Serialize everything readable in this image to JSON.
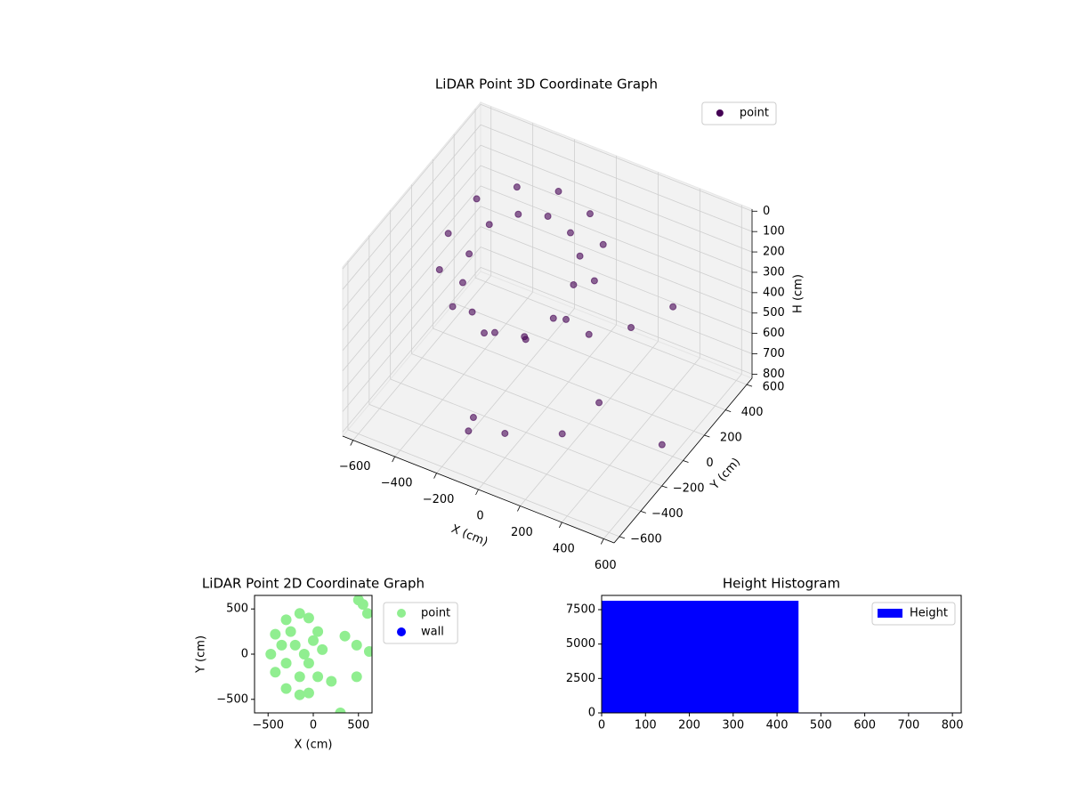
{
  "chart_data": [
    {
      "type": "scatter3d",
      "title": "LiDAR Point 3D Coordinate Graph",
      "xlabel": "X (cm)",
      "ylabel": "Y (cm)",
      "zlabel": "H (cm)",
      "xlim": [
        -650,
        650
      ],
      "ylim": [
        -650,
        650
      ],
      "zlim": [
        820,
        -10
      ],
      "xticks": [
        {
          "value": -600,
          "label": "−600"
        },
        {
          "value": -400,
          "label": "−400"
        },
        {
          "value": -200,
          "label": "−200"
        },
        0,
        200,
        400,
        600
      ],
      "yticks": [
        {
          "value": -600,
          "label": "−600"
        },
        {
          "value": -400,
          "label": "−400"
        },
        {
          "value": -200,
          "label": "−200"
        },
        0,
        200,
        400,
        600
      ],
      "zticks": [
        0,
        100,
        200,
        300,
        400,
        500,
        600,
        700,
        800
      ],
      "legend": "upper right",
      "alpha": 0.6,
      "series": [
        {
          "name": "point",
          "color": "#440154",
          "x": [
            200,
            153,
            25,
            -150,
            -325,
            -453,
            -500,
            -453,
            -325,
            -150,
            25,
            153,
            100,
            67,
            -25,
            -150,
            -275,
            -367,
            -400,
            -367,
            -275,
            -150,
            -25,
            67,
            250,
            350,
            400,
            500,
            600,
            300,
            -100,
            0,
            -200
          ],
          "y": [
            50,
            225,
            353,
            400,
            353,
            225,
            50,
            -125,
            -253,
            -300,
            -253,
            -125,
            50,
            175,
            267,
            300,
            267,
            175,
            50,
            -75,
            -167,
            -200,
            -167,
            -75,
            -100,
            100,
            -300,
            200,
            -100,
            -450,
            -500,
            -400,
            -350
          ],
          "z": [
            150,
            100,
            80,
            70,
            90,
            120,
            200,
            250,
            300,
            330,
            320,
            250,
            210,
            160,
            140,
            130,
            150,
            180,
            260,
            310,
            360,
            390,
            380,
            310,
            300,
            350,
            450,
            250,
            700,
            550,
            600,
            700,
            800
          ]
        }
      ]
    },
    {
      "type": "scatter",
      "title": "LiDAR Point 2D Coordinate Graph",
      "xlabel": "X (cm)",
      "ylabel": "Y (cm)",
      "xlim": [
        -650,
        650
      ],
      "ylim": [
        -650,
        650
      ],
      "xticks": [
        {
          "value": -500,
          "label": "−500"
        },
        0,
        500
      ],
      "yticks": [
        {
          "value": -500,
          "label": "−500"
        },
        0,
        500
      ],
      "legend": "outside upper right",
      "series": [
        {
          "name": "point",
          "color": "#90ee90",
          "x": [
            100,
            50,
            -50,
            -150,
            -300,
            -420,
            -470,
            -420,
            -300,
            -150,
            -50,
            50,
            -100,
            -200,
            -300,
            -250,
            -150,
            -50,
            0,
            -350,
            550,
            600,
            500,
            620,
            300,
            480,
            480,
            350,
            200
          ],
          "y": [
            50,
            250,
            400,
            450,
            380,
            220,
            0,
            -200,
            -380,
            -450,
            -430,
            -250,
            0,
            100,
            -100,
            250,
            -250,
            -100,
            150,
            100,
            550,
            450,
            600,
            30,
            -650,
            -250,
            100,
            200,
            -300
          ]
        },
        {
          "name": "wall",
          "color": "#0000ff",
          "x": [],
          "y": []
        }
      ]
    },
    {
      "type": "histogram",
      "title": "Height Histogram",
      "xlim": [
        0,
        820
      ],
      "ylim": [
        0,
        8534
      ],
      "xticks": [
        0,
        100,
        200,
        300,
        400,
        500,
        600,
        700,
        800
      ],
      "yticks": [
        0,
        2500,
        5000,
        7500
      ],
      "legend": "upper right",
      "series": [
        {
          "name": "Height",
          "color": "#0000ff",
          "bins": [
            0,
            449,
            818
          ],
          "counts": [
            8146,
            30
          ]
        }
      ]
    }
  ]
}
